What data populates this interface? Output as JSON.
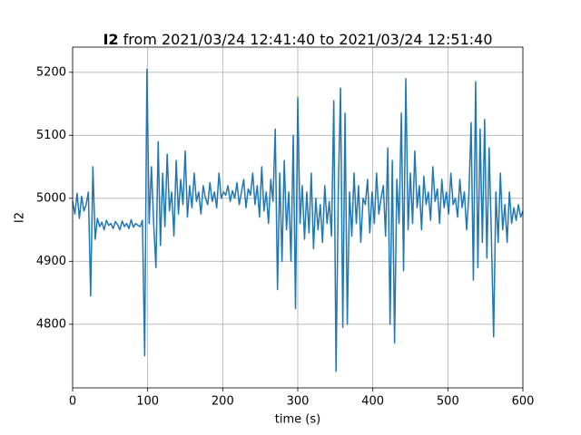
{
  "chart_data": {
    "type": "line",
    "title_bold": "I2",
    "title": "from 2021/03/24 12:41:40 to 2021/03/24 12:51:40",
    "xlabel": "time (s)",
    "ylabel": "I2",
    "xlim": [
      0,
      600
    ],
    "ylim": [
      4699,
      5240
    ],
    "xticks": [
      0,
      100,
      200,
      300,
      400,
      500,
      600
    ],
    "yticks": [
      4800,
      4900,
      5000,
      5100,
      5200
    ],
    "grid": true,
    "series": [
      {
        "name": "I2",
        "color": "#1f77b4",
        "x": [
          0,
          3,
          6,
          9,
          12,
          15,
          18,
          21,
          24,
          27,
          30,
          33,
          36,
          39,
          42,
          45,
          48,
          51,
          54,
          57,
          60,
          63,
          66,
          69,
          72,
          75,
          78,
          81,
          84,
          87,
          90,
          93,
          96,
          99,
          102,
          105,
          108,
          111,
          114,
          117,
          120,
          123,
          126,
          129,
          132,
          135,
          138,
          141,
          144,
          147,
          150,
          153,
          156,
          159,
          162,
          165,
          168,
          171,
          174,
          177,
          180,
          183,
          186,
          189,
          192,
          195,
          198,
          201,
          204,
          207,
          210,
          213,
          216,
          219,
          222,
          225,
          228,
          231,
          234,
          237,
          240,
          243,
          246,
          249,
          252,
          255,
          258,
          261,
          264,
          267,
          270,
          273,
          276,
          279,
          282,
          285,
          288,
          291,
          294,
          297,
          300,
          303,
          306,
          309,
          312,
          315,
          318,
          321,
          324,
          327,
          330,
          333,
          336,
          339,
          342,
          345,
          348,
          351,
          354,
          357,
          360,
          363,
          366,
          369,
          372,
          375,
          378,
          381,
          384,
          387,
          390,
          393,
          396,
          399,
          402,
          405,
          408,
          411,
          414,
          417,
          420,
          423,
          426,
          429,
          432,
          435,
          438,
          441,
          444,
          447,
          450,
          453,
          456,
          459,
          462,
          465,
          468,
          471,
          474,
          477,
          480,
          483,
          486,
          489,
          492,
          495,
          498,
          501,
          504,
          507,
          510,
          513,
          516,
          519,
          522,
          525,
          528,
          531,
          534,
          537,
          540,
          543,
          546,
          549,
          552,
          555,
          558,
          561,
          564,
          567,
          570,
          573,
          576,
          579,
          582,
          585,
          588,
          591,
          594,
          597,
          600
        ],
        "values": [
          4995,
          4975,
          5008,
          4968,
          5003,
          4980,
          4990,
          5010,
          4845,
          5050,
          4935,
          4968,
          4955,
          4962,
          4950,
          4965,
          4957,
          4960,
          4952,
          4963,
          4958,
          4950,
          4964,
          4955,
          4960,
          4952,
          4966,
          4954,
          4960,
          4957,
          4955,
          4965,
          4750,
          5205,
          4960,
          5050,
          4960,
          4890,
          5090,
          4925,
          5040,
          4955,
          5070,
          4980,
          5010,
          4940,
          5060,
          4975,
          5030,
          4990,
          5075,
          4970,
          5020,
          4985,
          5040,
          4995,
          5010,
          4975,
          5020,
          5000,
          4990,
          5025,
          4995,
          5010,
          4985,
          5040,
          5000,
          5010,
          5005,
          5020,
          4995,
          5012,
          5000,
          5025,
          4990,
          5010,
          5030,
          4985,
          5015,
          5005,
          5040,
          4990,
          5020,
          4970,
          5050,
          4980,
          5010,
          4960,
          5030,
          4995,
          5110,
          4855,
          5040,
          4900,
          5060,
          4950,
          5010,
          4900,
          5100,
          4825,
          5160,
          4960,
          5020,
          4935,
          5010,
          4945,
          5040,
          4920,
          5000,
          4950,
          4990,
          4930,
          5020,
          4960,
          4995,
          4940,
          5155,
          4725,
          5010,
          5175,
          4795,
          5135,
          4800,
          5010,
          4940,
          5040,
          4960,
          5020,
          4930,
          5000,
          4990,
          5030,
          4945,
          5010,
          4960,
          5040,
          4975,
          5000,
          5020,
          4940,
          5080,
          4800,
          5060,
          4770,
          5030,
          4960,
          5135,
          4885,
          5190,
          4950,
          5040,
          4960,
          5075,
          4985,
          5020,
          4950,
          5035,
          4990,
          5010,
          4965,
          5050,
          4995,
          5015,
          4960,
          5030,
          4985,
          5010,
          4975,
          5040,
          4990,
          5000,
          4970,
          5030,
          4985,
          5010,
          4950,
          5005,
          5120,
          4870,
          5185,
          4890,
          5110,
          4930,
          5125,
          4905,
          5080,
          4940,
          4780,
          5010,
          4930,
          5040,
          4950,
          4990,
          4930,
          5010,
          4960,
          4985,
          4965,
          4990,
          4970,
          4980
        ]
      }
    ]
  }
}
